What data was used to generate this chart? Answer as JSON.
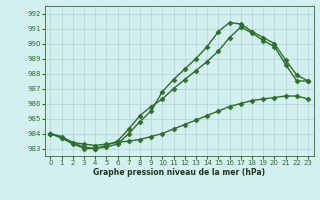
{
  "title": "",
  "xlabel": "Graphe pression niveau de la mer (hPa)",
  "background_color": "#d4efef",
  "grid_color": "#b0d4d4",
  "line_color": "#2d6e2d",
  "xlim": [
    -0.5,
    23.5
  ],
  "ylim": [
    982.5,
    992.5
  ],
  "yticks": [
    983,
    984,
    985,
    986,
    987,
    988,
    989,
    990,
    991,
    992
  ],
  "xticks": [
    0,
    1,
    2,
    3,
    4,
    5,
    6,
    7,
    8,
    9,
    10,
    11,
    12,
    13,
    14,
    15,
    16,
    17,
    18,
    19,
    20,
    21,
    22,
    23
  ],
  "line1_x": [
    0,
    1,
    2,
    3,
    4,
    5,
    6,
    7,
    8,
    9,
    10,
    11,
    12,
    13,
    14,
    15,
    16,
    17,
    18,
    19,
    20,
    21,
    22,
    23
  ],
  "line1_y": [
    984.0,
    983.8,
    983.4,
    983.3,
    983.2,
    983.3,
    983.4,
    983.5,
    983.6,
    983.8,
    984.0,
    984.3,
    984.6,
    984.9,
    985.2,
    985.5,
    985.8,
    986.0,
    986.2,
    986.3,
    986.4,
    986.5,
    986.5,
    986.3
  ],
  "line2_x": [
    0,
    1,
    2,
    3,
    4,
    5,
    6,
    7,
    8,
    9,
    10,
    11,
    12,
    13,
    14,
    15,
    16,
    17,
    18,
    19,
    20,
    21,
    22,
    23
  ],
  "line2_y": [
    984.0,
    983.7,
    983.4,
    983.1,
    983.0,
    983.2,
    983.5,
    984.3,
    985.2,
    985.8,
    986.3,
    987.0,
    987.6,
    988.2,
    988.8,
    989.5,
    990.4,
    991.1,
    990.7,
    990.2,
    989.8,
    988.6,
    987.5,
    987.5
  ],
  "line3_x": [
    0,
    1,
    2,
    3,
    4,
    5,
    6,
    7,
    8,
    9,
    10,
    11,
    12,
    13,
    14,
    15,
    16,
    17,
    18,
    19,
    20,
    21,
    22,
    23
  ],
  "line3_y": [
    984.0,
    983.7,
    983.3,
    983.0,
    983.0,
    983.1,
    983.3,
    984.0,
    984.8,
    985.5,
    986.8,
    987.6,
    988.3,
    989.0,
    989.8,
    990.8,
    991.4,
    991.3,
    990.8,
    990.4,
    990.0,
    988.9,
    987.9,
    987.5
  ],
  "marker": "D",
  "markersize": 2.5,
  "linewidth": 1.0,
  "tick_fontsize": 5.0,
  "xlabel_fontsize": 5.5
}
